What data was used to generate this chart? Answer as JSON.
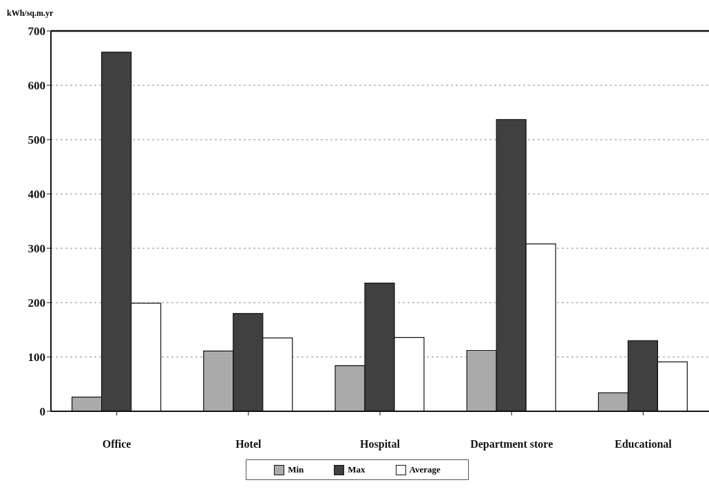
{
  "chart_data": {
    "type": "bar",
    "ylabel": "kWh/sq.m.yr",
    "categories": [
      "Office",
      "Hotel",
      "Hospital",
      "Department store",
      "Educational"
    ],
    "series": [
      {
        "name": "Min",
        "color": "#aaaaaa",
        "values": [
          26,
          111,
          84,
          112,
          34
        ]
      },
      {
        "name": "Max",
        "color": "#404040",
        "values": [
          661,
          180,
          236,
          537,
          130
        ]
      },
      {
        "name": "Average",
        "color": "#ffffff",
        "values": [
          199,
          135,
          136,
          308,
          91
        ]
      }
    ],
    "ylim": [
      0,
      700
    ],
    "yticks": [
      0,
      100,
      200,
      300,
      400,
      500,
      600,
      700
    ],
    "grid": "y",
    "legend": "bottom"
  }
}
